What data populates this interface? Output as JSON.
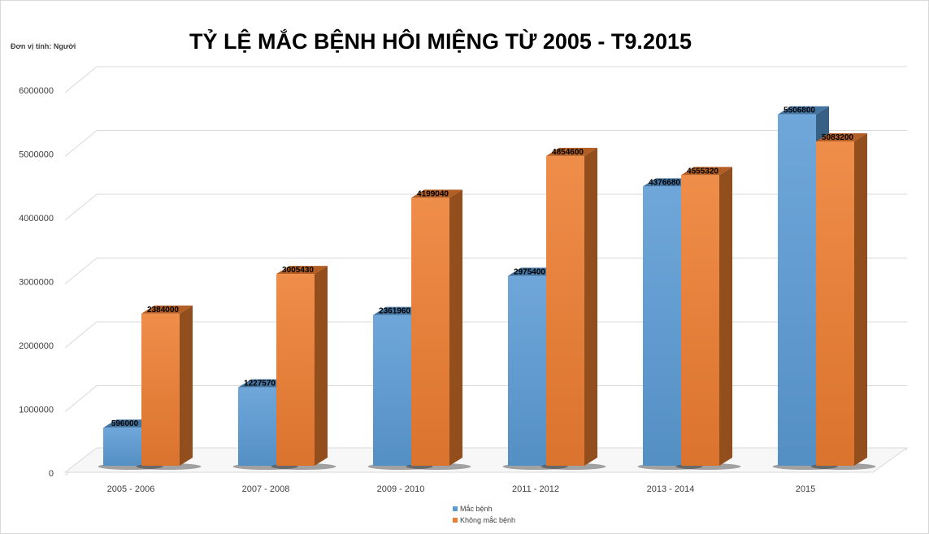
{
  "chart_data": {
    "type": "bar",
    "title": "TỶ LỆ MẮC BỆNH HÔI MIỆNG TỪ 2005 - T9.2015",
    "unit_note": "Đơn vị tính: Người",
    "categories": [
      "2005 - 2006",
      "2007 - 2008",
      "2009 - 2010",
      "2011 - 2012",
      "2013 - 2014",
      "2015"
    ],
    "series": [
      {
        "name": "Mắc bệnh",
        "values": [
          596000,
          1227570,
          2361960,
          2975400,
          4376680,
          5506800
        ],
        "color": "#5B9BD5"
      },
      {
        "name": "Không mắc bệnh",
        "values": [
          2384000,
          3005430,
          4199040,
          4854600,
          4555320,
          5083200
        ],
        "color": "#ED7D31"
      }
    ],
    "y_ticks": [
      "0",
      "1000000",
      "2000000",
      "3000000",
      "4000000",
      "5000000",
      "6000000"
    ],
    "ylim": [
      0,
      6000000
    ],
    "grid": true,
    "legend_position": "bottom",
    "style": "3d-clustered-column"
  }
}
